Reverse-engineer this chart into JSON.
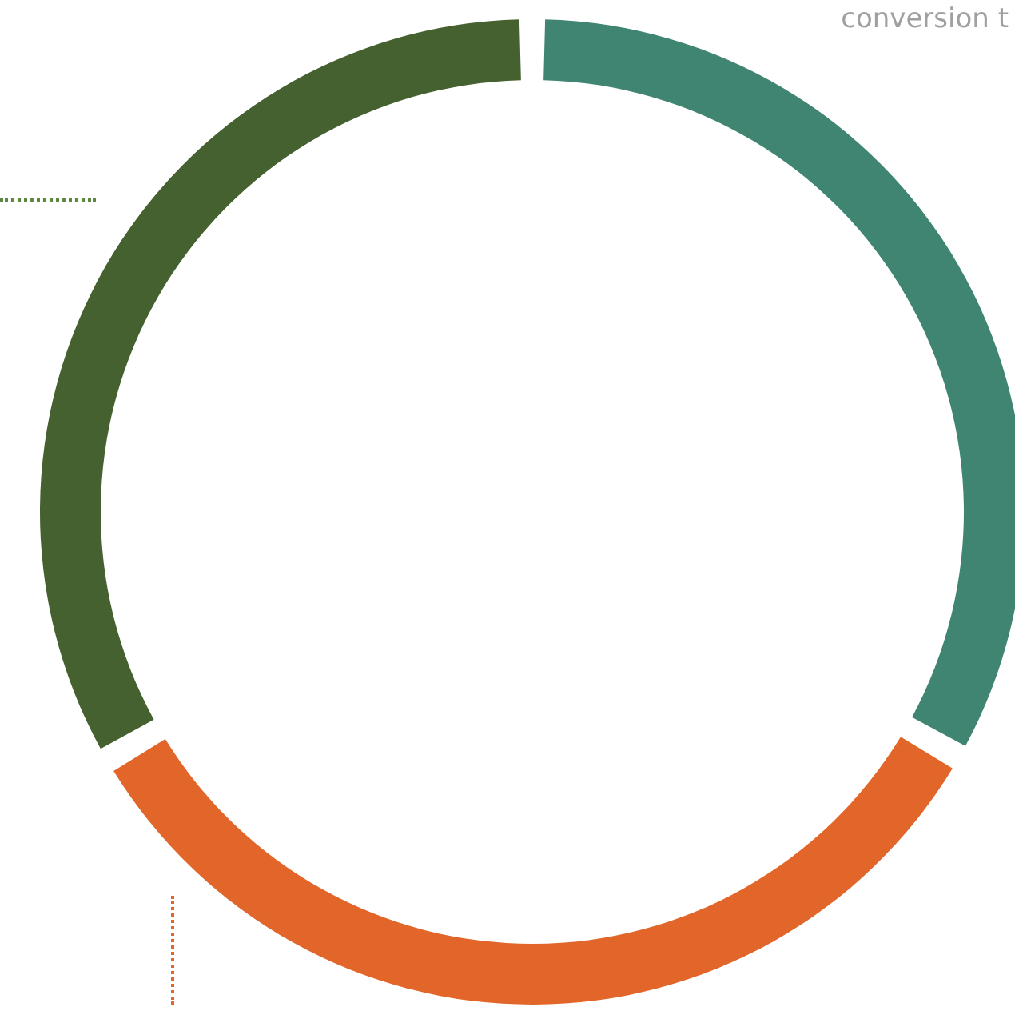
{
  "chart_data": {
    "type": "donut",
    "categories": [
      null,
      null,
      null
    ],
    "values": [
      33.3,
      33.3,
      33.4
    ],
    "colors": [
      "#3f8572",
      "#e2662a",
      "#44612f"
    ],
    "annotations": [
      "conversion t"
    ]
  }
}
